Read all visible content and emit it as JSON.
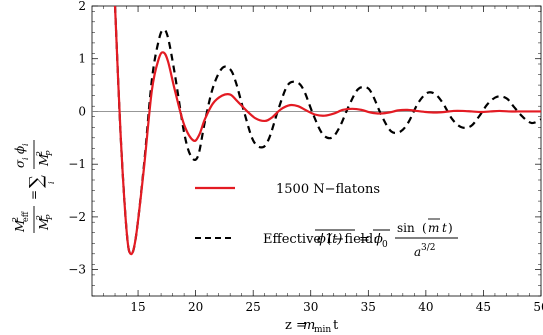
{
  "chart_data": {
    "type": "line",
    "xlabel_prefix": "z = ",
    "xlabel_var": "m",
    "xlabel_sub": "min",
    "xlabel_suffix": "t",
    "xlim": [
      11,
      50
    ],
    "ylim": [
      -3.5,
      2
    ],
    "xticks": [
      15,
      20,
      25,
      30,
      35,
      40,
      45,
      50
    ],
    "xtick_labels": [
      "15",
      "20",
      "25",
      "30",
      "35",
      "40",
      "45",
      "50"
    ],
    "yticks": [
      -3,
      -2,
      -1,
      0,
      1,
      2
    ],
    "ytick_labels": [
      "−3",
      "−2",
      "−1",
      "0",
      "1",
      "2"
    ],
    "ylabel": {
      "lhs_num": "M",
      "lhs_num_sub": "eff",
      "lhs_num_sup": "2",
      "lhs_den": "M",
      "lhs_den_sub": "P",
      "lhs_den_sup": "2",
      "eq": "=",
      "sum": "∑",
      "sum_index": "i",
      "rhs_num": "σ",
      "rhs_num_sub1": "i",
      "rhs_num_phi": "ϕ",
      "rhs_num_sub2": "i",
      "rhs_den": "M",
      "rhs_den_sub": "P",
      "rhs_den_sup": "2"
    },
    "series": [
      {
        "name": "1500 N−flatons",
        "color": "#e31b23",
        "style": "solid",
        "x": [
          13.0,
          13.5,
          14.0,
          14.35,
          14.8,
          15.5,
          16.2,
          16.8,
          17.2,
          17.6,
          18.2,
          19.0,
          19.8,
          20.3,
          20.8,
          21.5,
          22.3,
          23.0,
          23.6,
          24.4,
          25.2,
          26.0,
          26.6,
          27.4,
          28.2,
          28.9,
          29.6,
          30.4,
          31.2,
          32.0,
          32.8,
          33.6,
          34.4,
          35.2,
          36.0,
          36.8,
          37.6,
          38.4,
          39.2,
          40.0,
          40.8,
          41.6,
          42.4,
          43.2,
          44.0,
          44.8,
          45.6,
          46.4,
          47.2,
          48.0,
          48.8,
          50.0
        ],
        "y": [
          2.0,
          -0.5,
          -2.25,
          -2.7,
          -2.4,
          -1.1,
          0.4,
          1.0,
          1.12,
          0.95,
          0.4,
          -0.25,
          -0.55,
          -0.45,
          -0.15,
          0.15,
          0.3,
          0.32,
          0.2,
          0.02,
          -0.13,
          -0.18,
          -0.12,
          0.04,
          0.12,
          0.1,
          0.02,
          -0.06,
          -0.08,
          -0.04,
          0.03,
          0.05,
          0.03,
          -0.02,
          -0.04,
          -0.02,
          0.02,
          0.03,
          0.01,
          -0.01,
          -0.02,
          -0.01,
          0.01,
          0.01,
          0.0,
          -0.01,
          0.0,
          0.01,
          0.0,
          0.0,
          0.0,
          0.0
        ]
      },
      {
        "name": "Effective 1−field:",
        "color": "#000000",
        "style": "dashed",
        "x": [
          13.0,
          13.5,
          14.0,
          14.35,
          14.8,
          15.5,
          16.2,
          16.8,
          17.2,
          17.6,
          18.2,
          19.0,
          19.6,
          20.2,
          20.8,
          21.5,
          22.3,
          23.0,
          23.5,
          24.2,
          25.0,
          25.8,
          26.4,
          27.2,
          28.0,
          28.8,
          29.4,
          30.2,
          31.0,
          31.8,
          32.5,
          33.3,
          34.1,
          34.9,
          35.4,
          36.2,
          37.0,
          37.8,
          38.5,
          39.3,
          40.1,
          40.8,
          41.5,
          42.3,
          43.1,
          43.9,
          44.6,
          45.4,
          46.2,
          47.0,
          47.6,
          48.4,
          49.2,
          50.0
        ],
        "y": [
          2.0,
          -0.5,
          -2.25,
          -2.7,
          -2.4,
          -1.05,
          0.6,
          1.35,
          1.55,
          1.4,
          0.7,
          -0.4,
          -0.85,
          -0.85,
          -0.2,
          0.45,
          0.82,
          0.8,
          0.55,
          0.0,
          -0.55,
          -0.68,
          -0.5,
          0.05,
          0.5,
          0.55,
          0.4,
          -0.05,
          -0.42,
          -0.5,
          -0.3,
          0.1,
          0.42,
          0.45,
          0.3,
          -0.1,
          -0.38,
          -0.38,
          -0.2,
          0.15,
          0.35,
          0.33,
          0.15,
          -0.15,
          -0.3,
          -0.28,
          -0.1,
          0.15,
          0.28,
          0.25,
          0.1,
          -0.1,
          -0.22,
          -0.15
        ]
      }
    ],
    "formula": {
      "phi": "ϕ",
      "t_paren": "(t)",
      "eq": "=",
      "phi0": "ϕ",
      "phi0_sub": "0",
      "sin": "sin",
      "mbar": "m",
      "t": "t",
      "a": "a",
      "a_sup": "3/2"
    },
    "legend_placement": "center",
    "grid": false
  }
}
